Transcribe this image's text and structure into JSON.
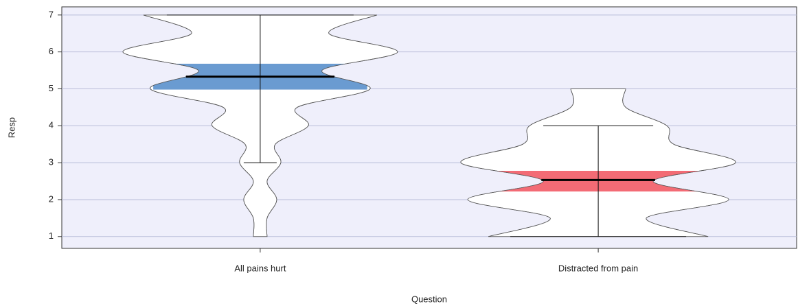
{
  "chart_data": {
    "type": "pirate",
    "xlabel": "Question",
    "ylabel": "Resp",
    "categories": [
      "All pains hurt",
      "Distracted from pain"
    ],
    "ylim": [
      0.68,
      7.22
    ],
    "yticks": [
      1,
      2,
      3,
      4,
      5,
      6,
      7
    ],
    "grid": true,
    "series": [
      {
        "name": "All pains hurt",
        "color": "#6a9bd1",
        "mean": 5.33,
        "hdi": [
          4.98,
          5.68
        ],
        "range": [
          3,
          7
        ],
        "density_y": [
          1,
          1.5,
          2,
          2.5,
          3,
          3.5,
          4,
          4.5,
          5,
          5.5,
          6,
          6.5,
          7
        ],
        "density": [
          0.05,
          0.05,
          0.12,
          0.05,
          0.15,
          0.11,
          0.35,
          0.27,
          0.8,
          0.45,
          1.0,
          0.5,
          0.85
        ]
      },
      {
        "name": "Distracted from pain",
        "color": "#f36b75",
        "mean": 2.53,
        "hdi": [
          2.22,
          2.78
        ],
        "range": [
          1,
          4
        ],
        "density_y": [
          1,
          1.5,
          2,
          2.5,
          3,
          3.5,
          4,
          4.5,
          5
        ],
        "density": [
          0.8,
          0.35,
          0.95,
          0.4,
          1.0,
          0.55,
          0.5,
          0.2,
          0.2
        ]
      }
    ]
  }
}
